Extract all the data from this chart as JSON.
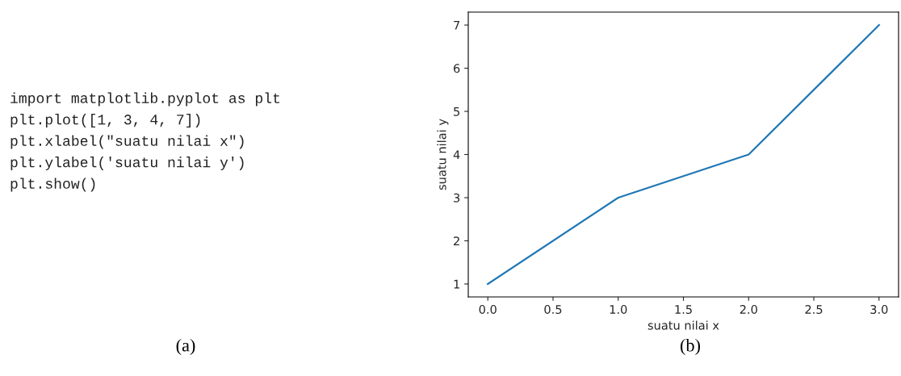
{
  "chart_data": {
    "type": "line",
    "xlabel": "suatu nilai x",
    "ylabel": "suatu nilai y",
    "x": [
      0,
      1,
      2,
      3
    ],
    "series": [
      {
        "color": "#1f77b4",
        "values": [
          1,
          3,
          4,
          7
        ]
      }
    ],
    "xlim": [
      -0.15,
      3.15
    ],
    "ylim": [
      0.7,
      7.3
    ],
    "xticks": [
      {
        "value": 0,
        "label": "0.0"
      },
      {
        "value": 0.5,
        "label": "0.5"
      },
      {
        "value": 1,
        "label": "1.0"
      },
      {
        "value": 1.5,
        "label": "1.5"
      },
      {
        "value": 2,
        "label": "2.0"
      },
      {
        "value": 2.5,
        "label": "2.5"
      },
      {
        "value": 3,
        "label": "3.0"
      }
    ],
    "yticks": [
      1,
      2,
      3,
      4,
      5,
      6,
      7
    ],
    "grid": false,
    "legend": false,
    "marker": "none",
    "line_style": "solid",
    "annotations": [
      "import matplotlib.pyplot as plt",
      "plt.plot([1, 3, 4, 7])",
      "plt.xlabel(\"suatu nilai x\")",
      "plt.ylabel('suatu nilai y')",
      "plt.show()",
      "(a)",
      "(b)"
    ]
  }
}
